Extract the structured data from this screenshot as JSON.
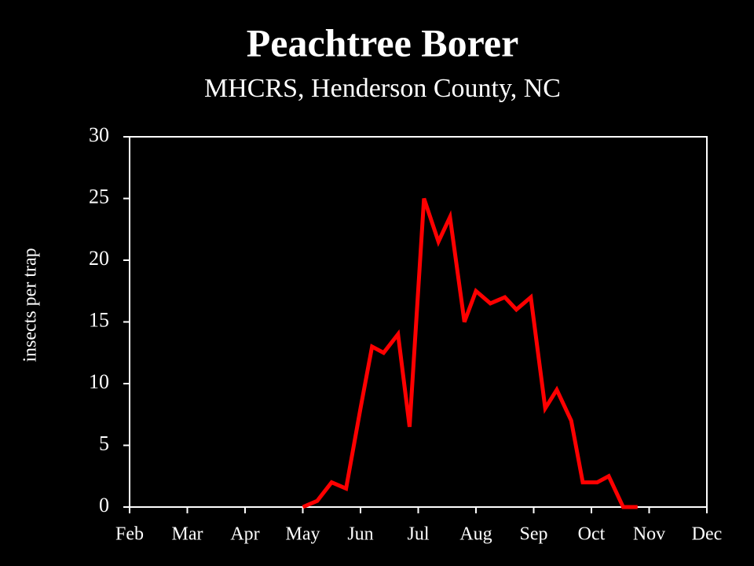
{
  "chart_data": {
    "type": "line",
    "title": "Peachtree Borer",
    "subtitle": "MHCRS, Henderson County, NC",
    "y_label": "insects per trap",
    "x": [
      5.0,
      5.25,
      5.5,
      5.75,
      6.0,
      6.2,
      6.4,
      6.65,
      6.85,
      7.1,
      7.35,
      7.55,
      7.8,
      8.0,
      8.25,
      8.5,
      8.7,
      8.95,
      9.2,
      9.4,
      9.65,
      9.85,
      10.1,
      10.3,
      10.55,
      10.8
    ],
    "series": [
      {
        "name": "Peachtree Borer",
        "color": "#ff0000",
        "values": [
          0,
          0.5,
          2,
          1.5,
          8,
          13,
          12.5,
          14,
          6.5,
          25,
          21.5,
          23.5,
          15,
          17.5,
          16.5,
          17,
          16,
          17,
          8,
          9.5,
          7,
          2,
          2,
          2.5,
          0,
          0
        ]
      }
    ],
    "xlim": [
      2,
      12
    ],
    "xticks": [
      {
        "value": 2,
        "label": "Feb"
      },
      {
        "value": 3,
        "label": "Mar"
      },
      {
        "value": 4,
        "label": "Apr"
      },
      {
        "value": 5,
        "label": "May"
      },
      {
        "value": 6,
        "label": "Jun"
      },
      {
        "value": 7,
        "label": "Jul"
      },
      {
        "value": 8,
        "label": "Aug"
      },
      {
        "value": 9,
        "label": "Sep"
      },
      {
        "value": 10,
        "label": "Oct"
      },
      {
        "value": 11,
        "label": "Nov"
      },
      {
        "value": 12,
        "label": "Dec"
      }
    ],
    "ylim": [
      0,
      30
    ],
    "yticks": [
      0,
      5,
      10,
      15,
      20,
      25,
      30
    ],
    "grid": false
  }
}
